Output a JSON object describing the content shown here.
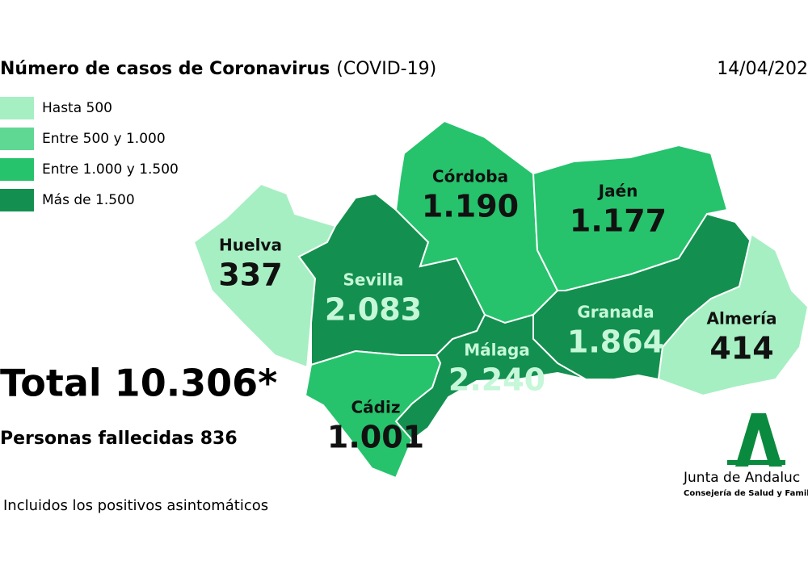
{
  "header": {
    "title": "Número de casos de Coronavirus",
    "subtitle": "(COVID-19)",
    "date": "14/04/202"
  },
  "legend": [
    {
      "label": "Hasta 500",
      "color": "#a6efc2"
    },
    {
      "label": "Entre 500 y 1.000",
      "color": "#5fd894"
    },
    {
      "label": "Entre 1.000 y 1.500",
      "color": "#26c36c"
    },
    {
      "label": "Más de 1.500",
      "color": "#13904f"
    }
  ],
  "provinces": [
    {
      "name": "Huelva",
      "value": "337",
      "color": "#a6efc2"
    },
    {
      "name": "Sevilla",
      "value": "2.083",
      "color": "#13904f"
    },
    {
      "name": "Córdoba",
      "value": "1.190",
      "color": "#26c36c"
    },
    {
      "name": "Jaén",
      "value": "1.177",
      "color": "#26c36c"
    },
    {
      "name": "Granada",
      "value": "1.864",
      "color": "#13904f"
    },
    {
      "name": "Almería",
      "value": "414",
      "color": "#a6efc2"
    },
    {
      "name": "Málaga",
      "value": "2.240",
      "color": "#13904f"
    },
    {
      "name": "Cádiz",
      "value": "1.001",
      "color": "#26c36c"
    }
  ],
  "summary": {
    "total": "Total 10.306*",
    "deaths": "Personas fallecidas 836",
    "footnote": "Incluidos los positivos asintomáticos"
  },
  "logo": {
    "title": "Junta de Andaluc",
    "subtitle": "Consejería de Salud y Famil"
  }
}
